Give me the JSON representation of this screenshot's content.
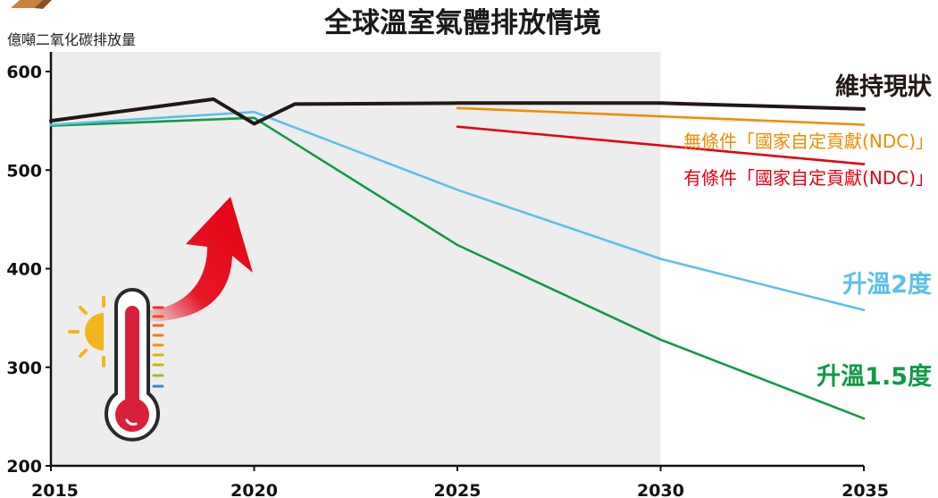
{
  "chart_data": {
    "type": "line",
    "title": "全球溫室氣體排放情境",
    "ylabel": "億噸二氧化碳排放量",
    "xlabel": "",
    "xlim": [
      2015,
      2035
    ],
    "ylim": [
      200,
      600
    ],
    "x_ticks": [
      "2015",
      "2020",
      "2025",
      "2030",
      "2035"
    ],
    "y_ticks": [
      "200",
      "300",
      "400",
      "500",
      "600"
    ],
    "shaded_region": [
      2015,
      2030
    ],
    "series": [
      {
        "name": "維持現狀",
        "color": "#231815",
        "points": [
          [
            2015,
            550
          ],
          [
            2019,
            572
          ],
          [
            2020,
            547
          ],
          [
            2021,
            567
          ],
          [
            2025,
            568
          ],
          [
            2030,
            568
          ],
          [
            2035,
            562
          ]
        ]
      },
      {
        "name": "無條件「國家自定貢獻(NDC)」",
        "color": "#f08c00",
        "points": [
          [
            2025,
            563
          ],
          [
            2035,
            546
          ]
        ]
      },
      {
        "name": "有條件「國家自定貢獻(NDC)」",
        "color": "#e60012",
        "points": [
          [
            2025,
            544
          ],
          [
            2035,
            506
          ]
        ]
      },
      {
        "name": "升溫2度",
        "color": "#5bc0eb",
        "points": [
          [
            2015,
            546
          ],
          [
            2020,
            559
          ],
          [
            2025,
            480
          ],
          [
            2030,
            410
          ],
          [
            2035,
            358
          ]
        ]
      },
      {
        "name": "升溫1.5度",
        "color": "#109a45",
        "points": [
          [
            2015,
            545
          ],
          [
            2020,
            553
          ],
          [
            2025,
            424
          ],
          [
            2030,
            328
          ],
          [
            2035,
            248
          ]
        ]
      }
    ]
  }
}
